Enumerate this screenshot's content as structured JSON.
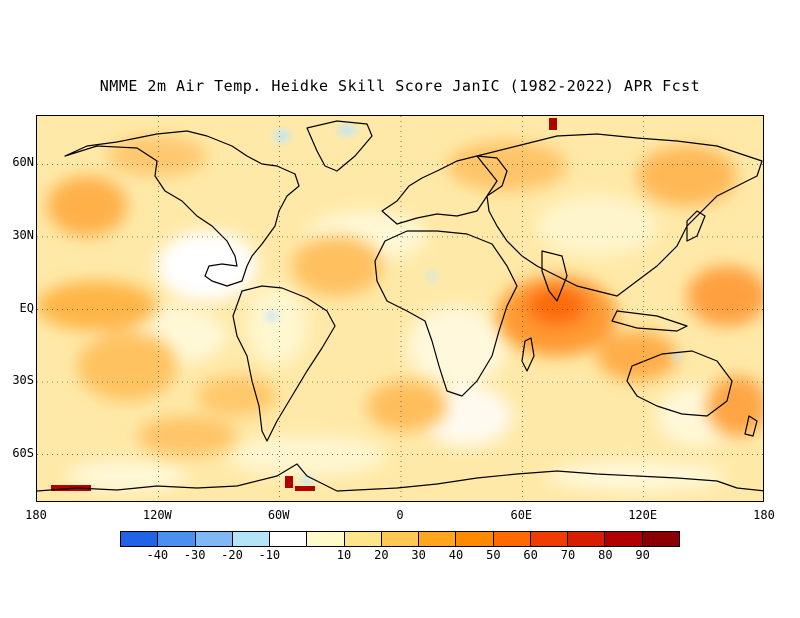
{
  "title": "NMME 2m Air Temp. Heidke Skill Score JanIC (1982-2022) APR Fcst",
  "lat_labels": [
    {
      "text": "60N",
      "lat": 60
    },
    {
      "text": "30N",
      "lat": 30
    },
    {
      "text": "EQ",
      "lat": 0
    },
    {
      "text": "30S",
      "lat": -30
    },
    {
      "text": "60S",
      "lat": -60
    }
  ],
  "lon_labels": [
    {
      "text": "180",
      "lon": -180
    },
    {
      "text": "120W",
      "lon": -120
    },
    {
      "text": "60W",
      "lon": -60
    },
    {
      "text": "0",
      "lon": 0
    },
    {
      "text": "60E",
      "lon": 60
    },
    {
      "text": "120E",
      "lon": 120
    },
    {
      "text": "180",
      "lon": 180
    }
  ],
  "map_extent": {
    "lon": [
      -180,
      180
    ],
    "lat": [
      -80,
      80
    ]
  },
  "colorbar": {
    "colors": [
      "#2063e6",
      "#4a90f0",
      "#7fb8f5",
      "#b4e4f7",
      "#ffffff",
      "#fffbc8",
      "#ffe58a",
      "#ffc853",
      "#ffa51e",
      "#ff8a00",
      "#ff6a00",
      "#f03c00",
      "#d81e00",
      "#b00000",
      "#8a0000"
    ],
    "labels": [
      "-40",
      "-30",
      "-20",
      "-10",
      "10",
      "20",
      "30",
      "40",
      "50",
      "60",
      "70",
      "80",
      "90"
    ]
  }
}
